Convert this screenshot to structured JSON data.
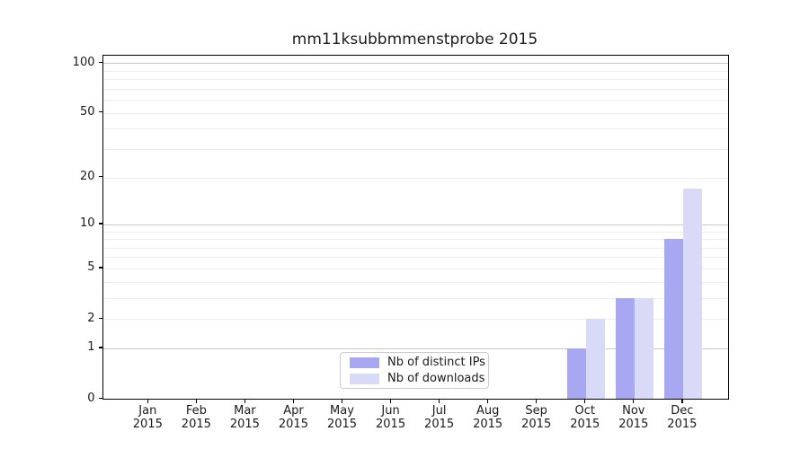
{
  "chart_data": {
    "type": "bar",
    "title": "mm11ksubbmmenstprobe 2015",
    "categories": [
      "Jan",
      "Feb",
      "Mar",
      "Apr",
      "May",
      "Jun",
      "Jul",
      "Aug",
      "Sep",
      "Oct",
      "Nov",
      "Dec"
    ],
    "x_tick_second_line": "2015",
    "series": [
      {
        "name": "Nb of distinct IPs",
        "color": "#a7a7f2",
        "values": [
          0,
          0,
          0,
          0,
          0,
          0,
          0,
          0,
          0,
          1,
          3,
          8
        ]
      },
      {
        "name": "Nb of downloads",
        "color": "#d9d9f8",
        "values": [
          0,
          0,
          0,
          0,
          0,
          0,
          0,
          0,
          0,
          2,
          3,
          17
        ]
      }
    ],
    "yscale": "log1p",
    "ylim": [
      0,
      111
    ],
    "yticks": [
      0,
      1,
      2,
      5,
      10,
      20,
      50,
      100
    ],
    "major_gridlines": [
      1,
      10,
      100
    ],
    "minor_gridlines": [
      2,
      3,
      4,
      5,
      6,
      7,
      8,
      9,
      20,
      30,
      40,
      50,
      60,
      70,
      80,
      90
    ],
    "grid": true,
    "legend_position": "lower center inside plot",
    "colors": {
      "axis_spine": "#000000",
      "major_grid": "#c9c9c9",
      "minor_grid": "#ededed",
      "legend_border": "#cccccc",
      "text": "#1a1a1a"
    }
  }
}
